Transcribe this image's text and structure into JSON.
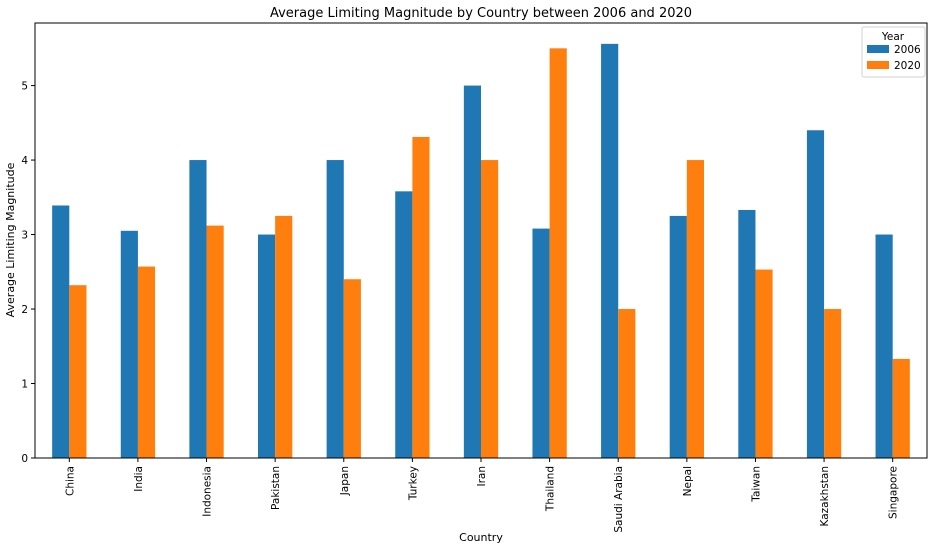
{
  "chart_data": {
    "type": "bar",
    "title": "Average Limiting Magnitude by Country between 2006 and 2020",
    "xlabel": "Country",
    "ylabel": "Average Limiting Magnitude",
    "categories": [
      "China",
      "India",
      "Indonesia",
      "Pakistan",
      "Japan",
      "Turkey",
      "Iran",
      "Thailand",
      "Saudi Arabia",
      "Nepal",
      "Taiwan",
      "Kazakhstan",
      "Singapore"
    ],
    "series": [
      {
        "name": "2006",
        "color": "#1f77b4",
        "values": [
          3.39,
          3.05,
          4.0,
          3.0,
          4.0,
          3.58,
          5.0,
          3.08,
          5.56,
          3.25,
          3.33,
          4.4,
          3.0
        ]
      },
      {
        "name": "2020",
        "color": "#ff7f0e",
        "values": [
          2.32,
          2.57,
          3.12,
          3.25,
          2.4,
          4.31,
          4.0,
          5.5,
          2.0,
          4.0,
          2.53,
          2.0,
          1.33
        ]
      }
    ],
    "yticks": [
      0,
      1,
      2,
      3,
      4,
      5
    ],
    "ylim": [
      0,
      5.84
    ],
    "legend": {
      "title": "Year",
      "placement": "top-right"
    },
    "grid": false
  }
}
